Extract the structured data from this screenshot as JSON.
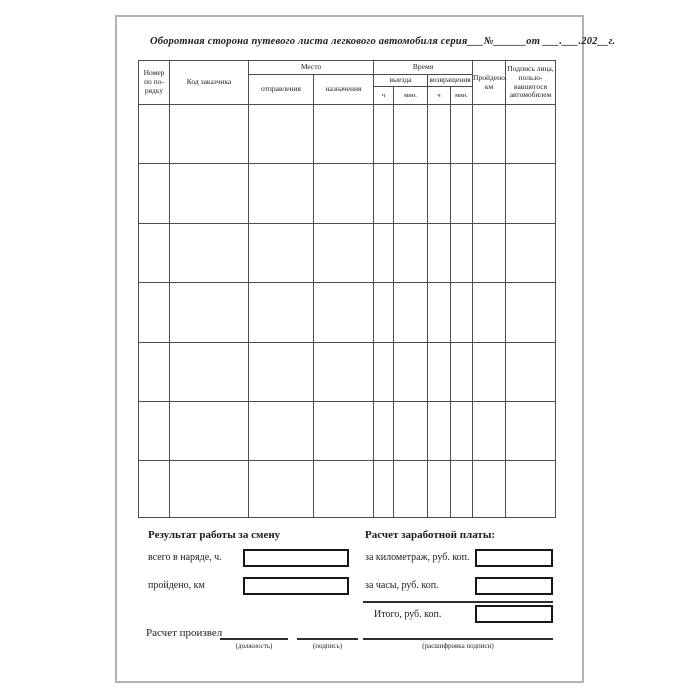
{
  "page": {
    "title": "Оборотная сторона путевого листа легкового автомобиля серия___№______от ___.___.202__г."
  },
  "table": {
    "empty_row_count": 7,
    "column_count": 10,
    "header": {
      "row_number": "Номер по по-рядку",
      "customer_code": "Код заказчика",
      "place": "Место",
      "departure": "отправления",
      "destination": "назначения",
      "time": "Время",
      "time_out": "выезда",
      "time_return": "возвращения",
      "hours_out": "ч",
      "minutes_out": "мин.",
      "hours_return": "ч",
      "minutes_return": "мин.",
      "distance": "Пройдено, км",
      "signature": "Подпись лица, пользо-вавшегося автомобилем"
    }
  },
  "results": {
    "heading": "Результат работы за смену",
    "fields": [
      {
        "label": "всего в наряде, ч.",
        "value": ""
      },
      {
        "label": "пройдено, км",
        "value": ""
      }
    ]
  },
  "payroll": {
    "heading": "Расчет заработной платы:",
    "fields": [
      {
        "label": "за километраж, руб. коп.",
        "value": ""
      },
      {
        "label": "за часы, руб. коп.",
        "value": ""
      }
    ],
    "total_label": "Итого, руб. коп.",
    "total_value": ""
  },
  "footer": {
    "calculated_by": "Расчет произвел",
    "position_label": "(должность)",
    "signature_label": "(подпись)",
    "signature_decryption_label": "(расшифровка подписи)"
  }
}
